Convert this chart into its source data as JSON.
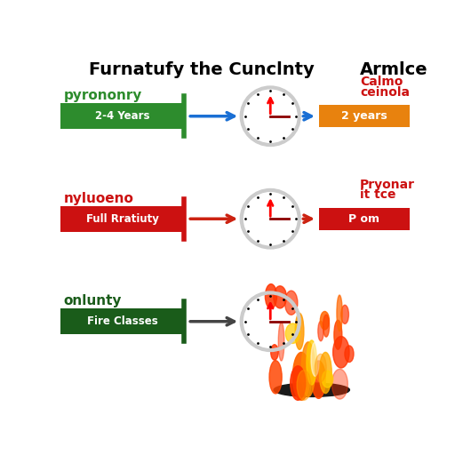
{
  "title": "Furnatufy the Cunclnty",
  "title_right": "Armlce",
  "row1_label": "pyrononry",
  "row1_bar_color": "#2d8c2d",
  "row1_bar_label": "2-4 Years",
  "row1_arrow_color": "#1a6fd4",
  "row1_right_box_color": "#e8820e",
  "row1_right_label": "2 years",
  "row1_right_top1": "Calmo",
  "row1_right_top2": "ceinola",
  "row2_label": "nyluoeno",
  "row2_bar_color": "#cc1111",
  "row2_bar_label": "Full Rratiuty",
  "row2_arrow_color": "#cc2211",
  "row2_right_box_color": "#cc1111",
  "row2_right_label": "P om",
  "row2_right_top1": "Pryonar",
  "row2_right_top2": "it tce",
  "row3_label": "onlunty",
  "row3_bar_color": "#1a5c1a",
  "row3_bar_label": "Fire Classes",
  "row3_arrow_color": "#444444",
  "background": "#ffffff"
}
